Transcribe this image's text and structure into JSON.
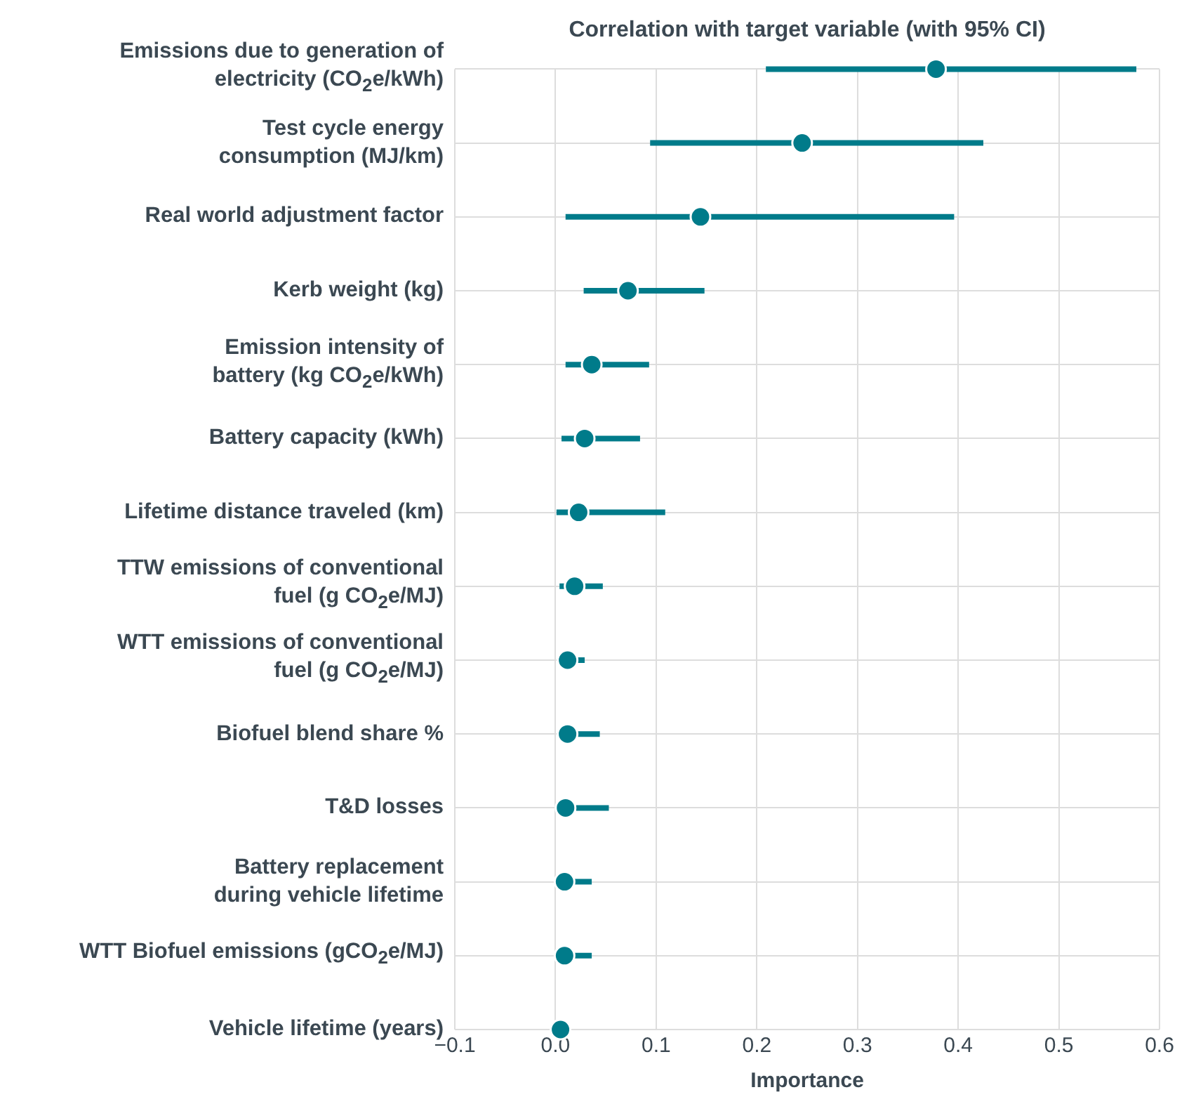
{
  "chart_data": {
    "type": "scatter",
    "orientation": "horizontal",
    "title": "Correlation with target variable (with 95% CI)",
    "xlabel": "Importance",
    "categories": [
      "Emissions due to generation of\nelectricity (CO$_{2}$e/kWh)",
      "Test cycle energy\nconsumption (MJ/km)",
      "Real world adjustment factor",
      "Kerb weight (kg)",
      "Emission intensity of\nbattery (kg CO$_{2}$e/kWh)",
      "Battery capacity (kWh)",
      "Lifetime distance traveled (km)",
      "TTW emissions of conventional\nfuel (g CO$_{2}$e/MJ)",
      "WTT emissions of conventional\nfuel (g CO$_{2}$e/MJ)",
      "Biofuel blend share %",
      "T&D losses",
      "Battery replacement\nduring vehicle lifetime",
      "WTT Biofuel emissions (gCO$_{2}$e/MJ)",
      "Vehicle lifetime (years)"
    ],
    "values": [
      0.378,
      0.245,
      0.144,
      0.072,
      0.036,
      0.029,
      0.023,
      0.019,
      0.012,
      0.012,
      0.01,
      0.009,
      0.009,
      0.005
    ],
    "errors": [
      [
        0.209,
        0.577
      ],
      [
        0.094,
        0.425
      ],
      [
        0.01,
        0.396
      ],
      [
        0.028,
        0.148
      ],
      [
        0.01,
        0.093
      ],
      [
        0.006,
        0.084
      ],
      [
        0.001,
        0.109
      ],
      [
        0.004,
        0.047
      ],
      [
        0.01,
        0.029
      ],
      [
        0.005,
        0.044
      ],
      [
        0.0,
        0.053
      ],
      [
        0.005,
        0.036
      ],
      [
        0.005,
        0.036
      ],
      null
    ],
    "color": "#007b8a",
    "marker": "circle",
    "grid": true,
    "legend": false,
    "xlim": [
      -0.1,
      0.6
    ],
    "xticks": [
      {
        "value": -0.1,
        "label": "−0.1"
      },
      {
        "value": 0,
        "label": "0.0"
      },
      0.1,
      0.2,
      0.3,
      0.4,
      0.5,
      0.6
    ]
  }
}
